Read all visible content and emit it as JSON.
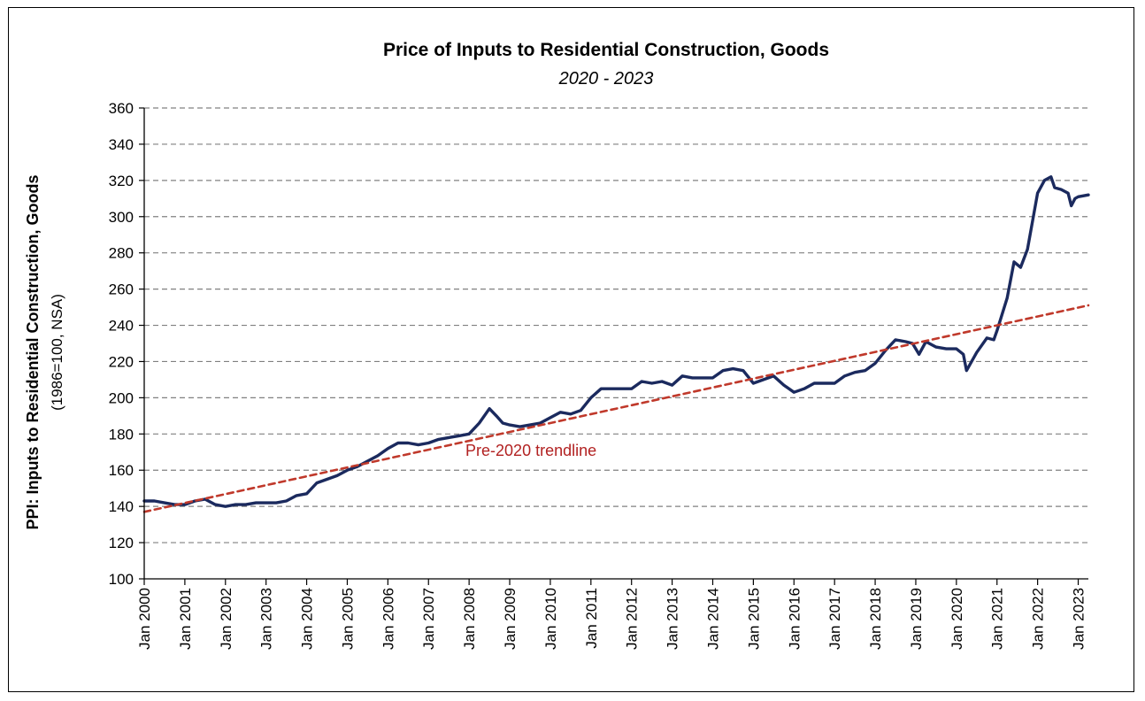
{
  "chart_data": {
    "type": "line",
    "title": "Price of Inputs to Residential Construction, Goods",
    "subtitle": "2020 - 2023",
    "ylabel": "PPI: Inputs to Residential Construction, Goods",
    "ylabel_sub": "(1986=100, NSA)",
    "ylim": [
      100,
      360
    ],
    "yticks": [
      100,
      120,
      140,
      160,
      180,
      200,
      220,
      240,
      260,
      280,
      300,
      320,
      340,
      360
    ],
    "xlim": [
      2000.0,
      2023.25
    ],
    "xtick_labels": [
      "Jan 2000",
      "Jan 2001",
      "Jan 2002",
      "Jan 2003",
      "Jan 2004",
      "Jan 2005",
      "Jan 2006",
      "Jan 2007",
      "Jan 2008",
      "Jan 2009",
      "Jan 2010",
      "Jan 2011",
      "Jan 2012",
      "Jan 2013",
      "Jan 2014",
      "Jan 2015",
      "Jan 2016",
      "Jan 2017",
      "Jan 2018",
      "Jan 2019",
      "Jan 2020",
      "Jan 2021",
      "Jan 2022",
      "Jan 2023"
    ],
    "grid": "horizontal dashed",
    "series": [
      {
        "name": "",
        "color": "#1b2a5e",
        "style": "solid",
        "x": [
          2000.0,
          2000.25,
          2000.5,
          2000.75,
          2001.0,
          2001.25,
          2001.5,
          2001.75,
          2002.0,
          2002.25,
          2002.5,
          2002.75,
          2003.0,
          2003.25,
          2003.5,
          2003.75,
          2004.0,
          2004.25,
          2004.5,
          2004.75,
          2005.0,
          2005.25,
          2005.5,
          2005.75,
          2006.0,
          2006.25,
          2006.5,
          2006.75,
          2007.0,
          2007.25,
          2007.5,
          2007.75,
          2008.0,
          2008.25,
          2008.5,
          2008.67,
          2008.83,
          2009.0,
          2009.25,
          2009.5,
          2009.75,
          2010.0,
          2010.25,
          2010.5,
          2010.75,
          2011.0,
          2011.25,
          2011.5,
          2011.75,
          2012.0,
          2012.25,
          2012.5,
          2012.75,
          2013.0,
          2013.25,
          2013.5,
          2013.75,
          2014.0,
          2014.25,
          2014.5,
          2014.75,
          2015.0,
          2015.25,
          2015.5,
          2015.75,
          2016.0,
          2016.25,
          2016.5,
          2016.75,
          2017.0,
          2017.25,
          2017.5,
          2017.75,
          2018.0,
          2018.25,
          2018.5,
          2018.75,
          2018.92,
          2019.08,
          2019.25,
          2019.5,
          2019.75,
          2020.0,
          2020.17,
          2020.25,
          2020.5,
          2020.75,
          2020.92,
          2021.0,
          2021.25,
          2021.42,
          2021.58,
          2021.75,
          2022.0,
          2022.17,
          2022.33,
          2022.42,
          2022.58,
          2022.75,
          2022.83,
          2022.92,
          2023.0,
          2023.25
        ],
        "values": [
          143,
          143,
          142,
          141,
          141,
          143,
          144,
          141,
          140,
          141,
          141,
          142,
          142,
          142,
          143,
          146,
          147,
          153,
          155,
          157,
          160,
          162,
          165,
          168,
          172,
          175,
          175,
          174,
          175,
          177,
          178,
          179,
          180,
          186,
          194,
          190,
          186,
          185,
          184,
          185,
          186,
          189,
          192,
          191,
          193,
          200,
          205,
          205,
          205,
          205,
          209,
          208,
          209,
          207,
          212,
          211,
          211,
          211,
          215,
          216,
          215,
          208,
          210,
          212,
          207,
          203,
          205,
          208,
          208,
          208,
          212,
          214,
          215,
          219,
          226,
          232,
          231,
          230,
          224,
          231,
          228,
          227,
          227,
          224,
          215,
          225,
          233,
          232,
          237,
          255,
          275,
          272,
          282,
          313,
          320,
          322,
          316,
          315,
          313,
          306,
          310,
          311,
          312
        ]
      },
      {
        "name": "Pre-2020 trendline",
        "color": "#c0392b",
        "style": "dashed",
        "x": [
          2000.0,
          2023.25
        ],
        "values": [
          137,
          251
        ]
      }
    ],
    "annotations": [
      {
        "text": "Pre-2020 trendline",
        "x": 2009.0,
        "y": 165,
        "color": "#b22222"
      }
    ]
  }
}
